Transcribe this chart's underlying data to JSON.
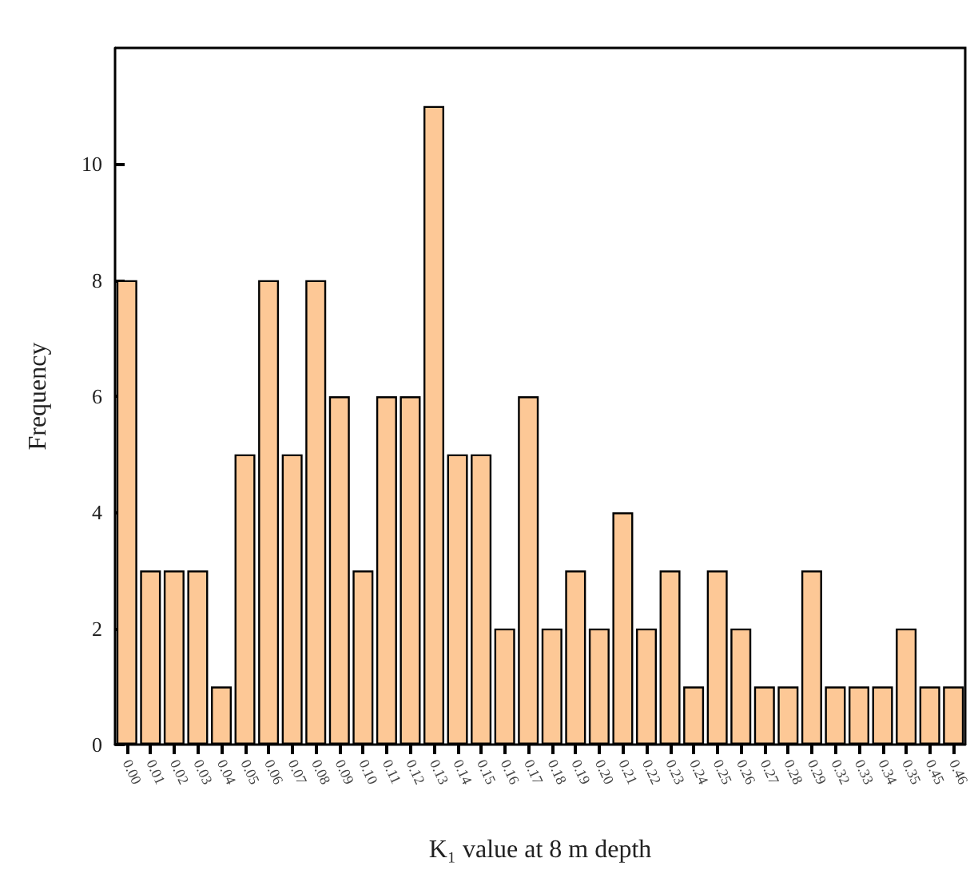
{
  "chart_data": {
    "type": "bar",
    "xlabel": "K₁ value at 8 m depth",
    "ylabel": "Frequency",
    "categories": [
      "0.00",
      "0.01",
      "0.02",
      "0.03",
      "0.04",
      "0.05",
      "0.06",
      "0.07",
      "0.08",
      "0.09",
      "0.10",
      "0.11",
      "0.12",
      "0.13",
      "0.14",
      "0.15",
      "0.16",
      "0.17",
      "0.18",
      "0.19",
      "0.20",
      "0.21",
      "0.22",
      "0.23",
      "0.24",
      "0.25",
      "0.26",
      "0.27",
      "0.28",
      "0.29",
      "0.32",
      "0.33",
      "0.34",
      "0.35",
      "0.45",
      "0.46"
    ],
    "values": [
      8,
      3,
      3,
      3,
      1,
      5,
      8,
      5,
      8,
      6,
      3,
      6,
      6,
      11,
      5,
      5,
      2,
      6,
      2,
      3,
      2,
      4,
      2,
      3,
      1,
      3,
      2,
      1,
      1,
      3,
      1,
      1,
      1,
      2,
      1,
      1
    ],
    "color": "#fdc896",
    "ylim": [
      0,
      12
    ],
    "yticks": [
      0,
      2,
      4,
      6,
      8,
      10
    ],
    "grid": false
  }
}
